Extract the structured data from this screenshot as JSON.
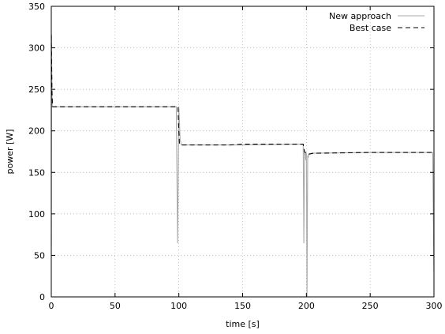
{
  "chart_data": {
    "type": "line",
    "title": "",
    "xlabel": "time [s]",
    "ylabel": "power [W]",
    "xlim": [
      0,
      300
    ],
    "ylim": [
      0,
      350
    ],
    "xticks": [
      0,
      50,
      100,
      150,
      200,
      250,
      300
    ],
    "yticks": [
      0,
      50,
      100,
      150,
      200,
      250,
      300,
      350
    ],
    "grid": true,
    "legend_position": "top-right",
    "series": [
      {
        "name": "New approach",
        "color": "#aaaaaa",
        "dash": "solid",
        "x": [
          0,
          0.2,
          0.5,
          0.8,
          1,
          2,
          50,
          98,
          99,
          99.5,
          100,
          100.5,
          101,
          102,
          150,
          197,
          197.5,
          198,
          198.5,
          199,
          199.5,
          200,
          200.5,
          201,
          201.5,
          202,
          202.5,
          203,
          205,
          250,
          299,
          299.5,
          300
        ],
        "y": [
          60,
          315,
          250,
          229,
          229,
          229,
          229,
          229,
          65,
          140,
          229,
          210,
          190,
          183,
          183,
          184,
          184,
          65,
          175,
          175,
          165,
          173,
          0,
          170,
          168,
          172,
          172,
          172,
          173,
          174,
          174,
          100,
          30
        ]
      },
      {
        "name": "Best case",
        "color": "#000000",
        "dash": "6,4",
        "x": [
          0,
          0.5,
          1,
          1.2,
          2,
          50,
          99.3,
          100,
          100.5,
          102,
          140,
          150,
          197.5,
          198.5,
          199.5,
          200.5,
          202,
          205,
          250,
          300
        ],
        "y": [
          315,
          250,
          229,
          229,
          229,
          229,
          229,
          200,
          184,
          183,
          183,
          184,
          184,
          175,
          173,
          172,
          172,
          173,
          174,
          174
        ]
      }
    ]
  }
}
